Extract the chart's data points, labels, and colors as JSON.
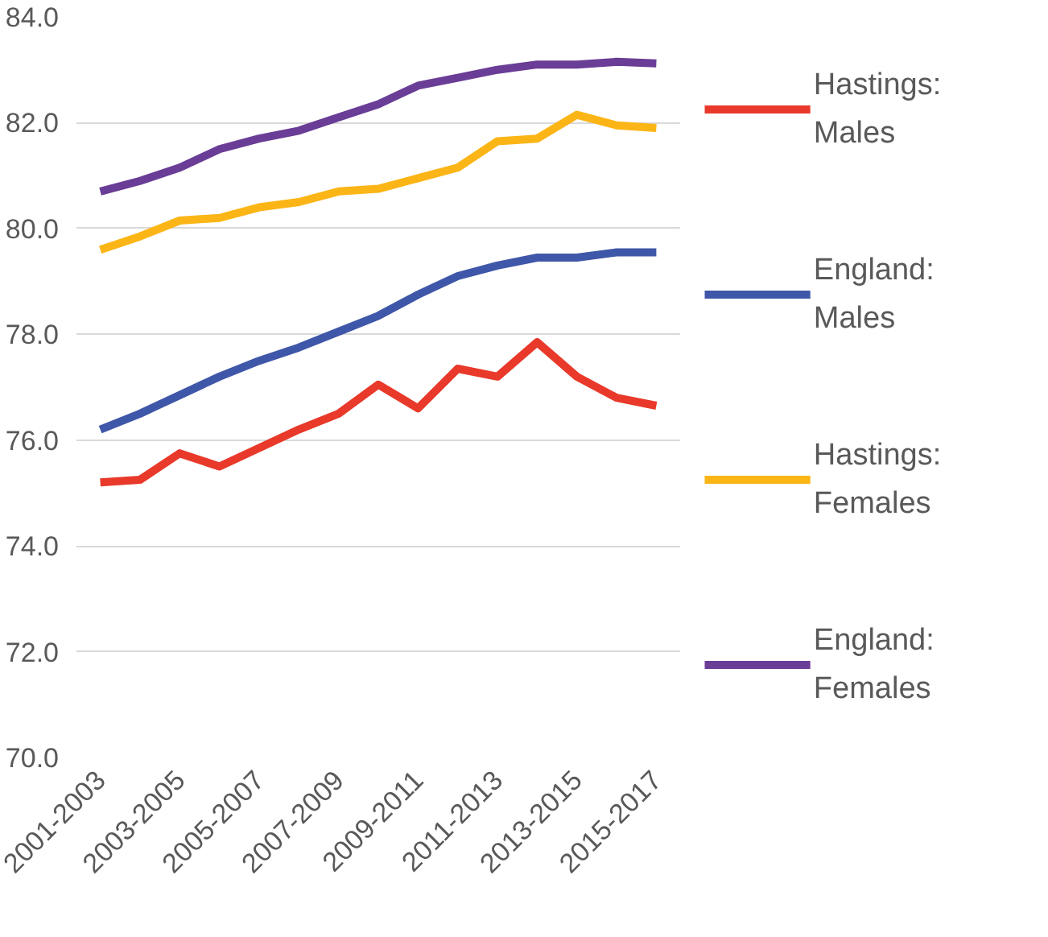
{
  "chart_data": {
    "type": "line",
    "categories": [
      "2001-2003",
      null,
      "2003-2005",
      null,
      "2005-2007",
      null,
      "2007-2009",
      null,
      "2009-2011",
      null,
      "2011-2013",
      null,
      "2013-2015",
      null,
      "2015-2017"
    ],
    "ylim": [
      70,
      84
    ],
    "yticks": [
      {
        "value": 70,
        "label": "70.0"
      },
      {
        "value": 72,
        "label": "72.0"
      },
      {
        "value": 74,
        "label": "74.0"
      },
      {
        "value": 76,
        "label": "76.0"
      },
      {
        "value": 78,
        "label": "78.0"
      },
      {
        "value": 80,
        "label": "80.0"
      },
      {
        "value": 82,
        "label": "82.0"
      },
      {
        "value": 84,
        "label": "84.0"
      }
    ],
    "grid": "y",
    "legend": "right",
    "marker": "none",
    "line_style": "solid",
    "series": [
      {
        "name": "Hastings: Males",
        "color": "#e8392a",
        "values": [
          75.2,
          75.25,
          75.75,
          75.5,
          75.85,
          76.2,
          76.5,
          77.05,
          76.6,
          77.35,
          77.2,
          77.85,
          77.2,
          76.8,
          76.65
        ]
      },
      {
        "name": "England: Males",
        "color": "#3f57a8",
        "values": [
          76.2,
          76.5,
          76.85,
          77.2,
          77.5,
          77.75,
          78.05,
          78.35,
          78.75,
          79.1,
          79.3,
          79.45,
          79.45,
          79.55,
          79.55
        ]
      },
      {
        "name": "Hastings: Females",
        "color": "#fbb516",
        "values": [
          79.6,
          79.85,
          80.15,
          80.2,
          80.4,
          80.5,
          80.7,
          80.75,
          80.95,
          81.15,
          81.65,
          81.7,
          82.15,
          81.95,
          81.9
        ]
      },
      {
        "name": "England: Females",
        "color": "#6a3d96",
        "values": [
          80.7,
          80.9,
          81.15,
          81.5,
          81.7,
          81.85,
          82.1,
          82.35,
          82.7,
          82.85,
          83.0,
          83.1,
          83.1,
          83.15,
          83.12
        ]
      }
    ]
  }
}
